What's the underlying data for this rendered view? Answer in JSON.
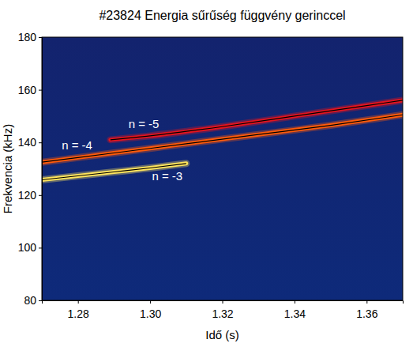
{
  "chart_data": {
    "type": "line",
    "title": "#23824 Energia sűrűség függvény gerinccel",
    "x_label": "Idő (s)",
    "y_label": "Frekvencia (kHz)",
    "xlim": [
      1.27,
      1.37
    ],
    "xticks": [
      1.28,
      {
        "value": 1.3,
        "label": "1.30"
      },
      1.32,
      1.34,
      1.36
    ],
    "ylim": [
      80,
      180
    ],
    "yticks": [
      80,
      100,
      120,
      140,
      160,
      180
    ],
    "grid": false,
    "series": [
      {
        "color": "#ffe45c",
        "x": [
          1.27,
          1.28,
          1.29,
          1.3,
          1.31
        ],
        "values": [
          125.8,
          127.3,
          128.8,
          130.3,
          132.0
        ]
      },
      {
        "color": "#ff5a0a",
        "x": [
          1.27,
          1.29,
          1.31,
          1.33,
          1.35,
          1.37
        ],
        "values": [
          132.5,
          136.0,
          139.5,
          143.0,
          146.5,
          150.5
        ]
      },
      {
        "color": "#e3141e",
        "x": [
          1.289,
          1.3,
          1.32,
          1.34,
          1.36,
          1.37
        ],
        "values": [
          141.0,
          142.5,
          146.0,
          150.0,
          154.0,
          156.0
        ]
      }
    ],
    "annotations": [
      {
        "text": "n = -5",
        "x": 1.294,
        "y": 145.5
      },
      {
        "text": "n = -4",
        "x": 1.2755,
        "y": 137.5
      },
      {
        "text": "n = -3",
        "x": 1.3005,
        "y": 125.5
      }
    ]
  }
}
